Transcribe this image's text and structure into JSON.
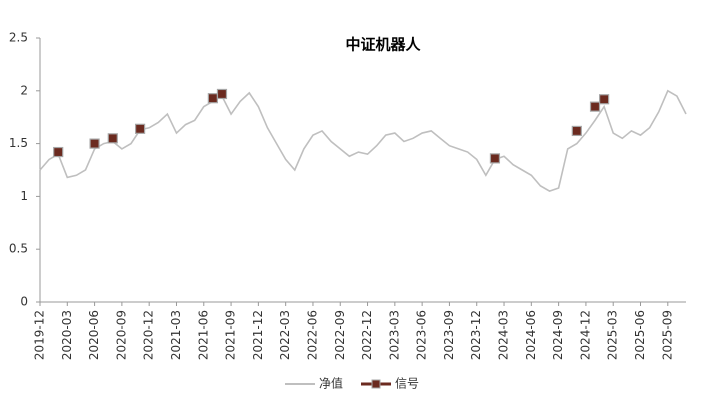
{
  "chart_data": {
    "type": "line",
    "title": "中证机器人",
    "categories": [
      "2019-12",
      null,
      null,
      "2020-03",
      null,
      null,
      "2020-06",
      null,
      null,
      "2020-09",
      null,
      null,
      "2020-12",
      null,
      null,
      "2021-03",
      null,
      null,
      "2021-06",
      null,
      null,
      "2021-09",
      null,
      null,
      "2021-12",
      null,
      null,
      "2022-03",
      null,
      null,
      "2022-06",
      null,
      null,
      "2022-09",
      null,
      null,
      "2022-12",
      null,
      null,
      "2023-03",
      null,
      null,
      "2023-06",
      null,
      null,
      "2023-09",
      null,
      null,
      "2023-12",
      null,
      null,
      "2024-03",
      null,
      null,
      "2024-06",
      null,
      null,
      "2024-09",
      null,
      null,
      "2024-12",
      null,
      null,
      "2025-03",
      null,
      null,
      "2025-06",
      null,
      null,
      "2025-09",
      null,
      null
    ],
    "series": [
      {
        "name": "净值",
        "color": "#bfbfbf",
        "values": [
          1.25,
          1.35,
          1.4,
          1.18,
          1.2,
          1.25,
          1.45,
          1.5,
          1.52,
          1.45,
          1.5,
          1.63,
          1.65,
          1.7,
          1.78,
          1.6,
          1.68,
          1.72,
          1.85,
          1.9,
          1.95,
          1.78,
          1.9,
          1.98,
          1.85,
          1.65,
          1.5,
          1.35,
          1.25,
          1.45,
          1.58,
          1.62,
          1.52,
          1.45,
          1.38,
          1.42,
          1.4,
          1.48,
          1.58,
          1.6,
          1.52,
          1.55,
          1.6,
          1.62,
          1.55,
          1.48,
          1.45,
          1.42,
          1.35,
          1.2,
          1.35,
          1.38,
          1.3,
          1.25,
          1.2,
          1.1,
          1.05,
          1.08,
          1.45,
          1.5,
          1.6,
          1.72,
          1.85,
          1.6,
          1.55,
          1.62,
          1.58,
          1.65,
          1.8,
          2.0,
          1.95,
          1.78
        ]
      },
      {
        "name": "信号",
        "color": "#6b2a1f",
        "values": [
          null,
          null,
          1.42,
          null,
          null,
          null,
          1.5,
          null,
          1.55,
          null,
          null,
          1.64,
          null,
          null,
          null,
          null,
          null,
          null,
          null,
          1.93,
          1.97,
          null,
          null,
          null,
          null,
          null,
          null,
          null,
          null,
          null,
          null,
          null,
          null,
          null,
          null,
          null,
          null,
          null,
          null,
          null,
          null,
          null,
          null,
          null,
          null,
          null,
          null,
          null,
          null,
          null,
          1.36,
          null,
          null,
          null,
          null,
          null,
          null,
          null,
          null,
          1.62,
          null,
          1.85,
          1.92,
          null,
          null,
          null,
          null,
          null,
          null,
          null,
          null,
          null
        ]
      }
    ],
    "ylim": [
      0,
      2.5
    ],
    "yticks": [
      0,
      0.5,
      1,
      1.5,
      2,
      2.5
    ],
    "grid": false,
    "legend": "bottom"
  }
}
